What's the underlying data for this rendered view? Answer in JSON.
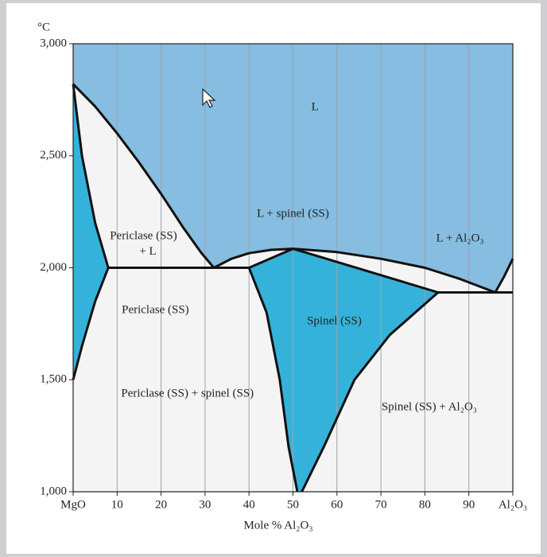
{
  "chart_data": {
    "type": "phase-diagram",
    "y_unit": "°C",
    "xlabel": "Mole % Al₂O₃",
    "xlim": [
      0,
      100
    ],
    "ylim": [
      1000,
      3000
    ],
    "xticks": [
      {
        "value": 0,
        "label": "MgO"
      },
      10,
      20,
      30,
      40,
      50,
      60,
      70,
      80,
      90,
      {
        "value": 100,
        "label": "Al₂O₃"
      }
    ],
    "yticks": [
      {
        "value": 1000,
        "label": "1,000"
      },
      {
        "value": 1500,
        "label": "1,500"
      },
      {
        "value": 2000,
        "label": "2,000"
      },
      {
        "value": 2500,
        "label": "2,500"
      },
      {
        "value": 3000,
        "label": "3,000"
      }
    ],
    "grid": "x",
    "regions": [
      {
        "color": "#86bde0",
        "x": [
          0,
          100,
          100,
          98,
          96,
          88,
          80,
          70,
          60,
          50,
          45,
          40,
          36,
          32,
          29,
          25,
          20,
          15,
          10,
          5,
          0
        ],
        "y": [
          3000,
          3000,
          2040,
          1960,
          1890,
          1950,
          2000,
          2040,
          2070,
          2085,
          2080,
          2065,
          2040,
          2000,
          2070,
          2180,
          2330,
          2470,
          2600,
          2720,
          2820
        ]
      },
      {
        "color": "#35b2da",
        "x": [
          0,
          2,
          5,
          8,
          5,
          2,
          0
        ],
        "y": [
          2820,
          2500,
          2200,
          2000,
          1850,
          1650,
          1500
        ]
      },
      {
        "color": "#35b2da",
        "x": [
          40,
          50,
          83,
          72,
          64,
          57,
          52,
          51,
          49,
          47,
          44
        ],
        "y": [
          2000,
          2085,
          1890,
          1700,
          1500,
          1200,
          1000,
          1000,
          1200,
          1500,
          1800
        ]
      }
    ],
    "boundaries": [
      {
        "color": "#111111",
        "x": [
          0,
          5,
          10,
          15,
          20,
          25,
          29,
          32
        ],
        "y": [
          2820,
          2720,
          2600,
          2470,
          2330,
          2180,
          2070,
          2000
        ]
      },
      {
        "color": "#111111",
        "x": [
          32,
          36,
          40,
          45,
          50,
          60,
          70,
          80,
          88,
          96
        ],
        "y": [
          2000,
          2040,
          2065,
          2080,
          2085,
          2070,
          2040,
          2000,
          1950,
          1890
        ]
      },
      {
        "color": "#111111",
        "x": [
          96,
          98,
          100
        ],
        "y": [
          1890,
          1960,
          2040
        ]
      },
      {
        "color": "#111111",
        "x": [
          0,
          2,
          5,
          8
        ],
        "y": [
          2820,
          2500,
          2200,
          2000
        ]
      },
      {
        "color": "#111111",
        "x": [
          8,
          5,
          2,
          0
        ],
        "y": [
          2000,
          1850,
          1650,
          1500
        ]
      },
      {
        "color": "#111111",
        "x": [
          8,
          40
        ],
        "y": [
          2000,
          2000
        ]
      },
      {
        "color": "#111111",
        "x": [
          40,
          50,
          83
        ],
        "y": [
          2000,
          2085,
          1890
        ]
      },
      {
        "color": "#111111",
        "x": [
          83,
          100
        ],
        "y": [
          1890,
          1890
        ]
      },
      {
        "color": "#111111",
        "x": [
          40,
          44,
          47,
          49,
          51
        ],
        "y": [
          2000,
          1800,
          1500,
          1200,
          1000
        ]
      },
      {
        "color": "#111111",
        "x": [
          83,
          72,
          64,
          57,
          52
        ],
        "y": [
          1890,
          1700,
          1500,
          1200,
          1000
        ]
      }
    ],
    "annotations": [
      {
        "text": "L",
        "x": 55,
        "y": 2716
      },
      {
        "text": "L + spinel (SS)",
        "x": 50,
        "y": 2240
      },
      {
        "text": "Periclase (SS)",
        "x": 16,
        "y": 2140
      },
      {
        "text": "+ L",
        "x": 17,
        "y": 2070
      },
      {
        "text": "L + Al₂O₃",
        "x": 88,
        "y": 2130
      },
      {
        "text": "Periclase (SS)",
        "x": 18.7,
        "y": 1810
      },
      {
        "text": "Spinel (SS)",
        "x": 59.4,
        "y": 1760
      },
      {
        "text": "Periclase (SS) + spinel (SS)",
        "x": 26,
        "y": 1437
      },
      {
        "text": "Spinel (SS) + Al₂O₃",
        "x": 81,
        "y": 1377
      }
    ]
  }
}
